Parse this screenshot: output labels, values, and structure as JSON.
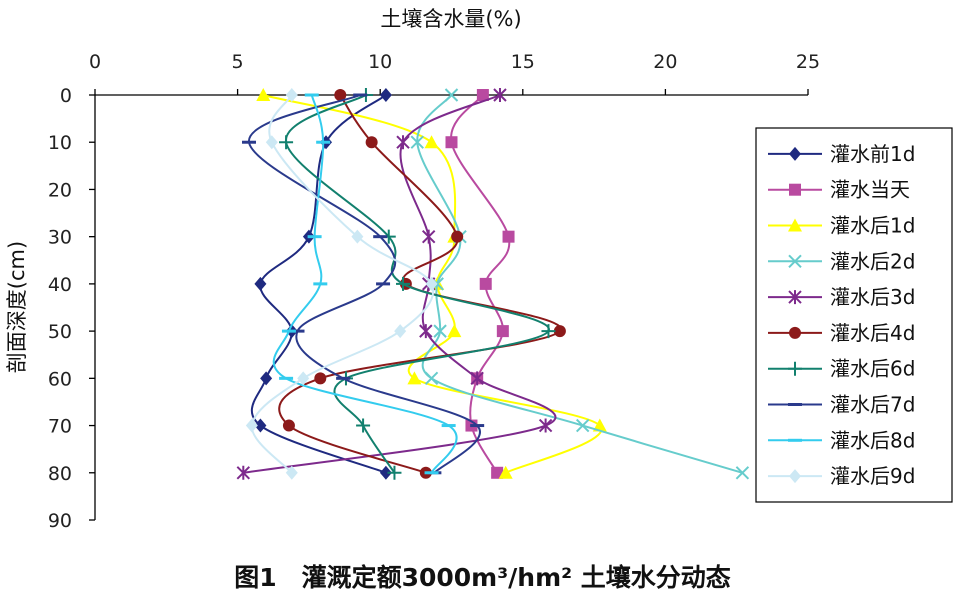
{
  "chart_data": {
    "type": "line",
    "title": "",
    "xlabel": "土壤含水量(%)",
    "ylabel": "剖面深度(cm)",
    "xlim": [
      0,
      25
    ],
    "ylim": [
      0,
      90
    ],
    "y_inverted": true,
    "x_axis_position": "top",
    "grid": false,
    "legend_position": "right",
    "x_ticks": [
      "0",
      "5",
      "10",
      "15",
      "20",
      "25"
    ],
    "y_ticks": [
      "0",
      "10",
      "20",
      "30",
      "40",
      "50",
      "60",
      "70",
      "80",
      "90"
    ],
    "depths": [
      0,
      10,
      30,
      40,
      50,
      60,
      70,
      80
    ],
    "series": [
      {
        "name": "灌水前1d",
        "color": "#1f2a80",
        "marker": "diamond",
        "values": [
          10.2,
          8.1,
          7.5,
          5.8,
          6.9,
          6.0,
          5.8,
          10.2
        ]
      },
      {
        "name": "灌水当天",
        "color": "#b94aa0",
        "marker": "square",
        "values": [
          13.6,
          12.5,
          14.5,
          13.7,
          14.3,
          13.4,
          13.2,
          14.1
        ]
      },
      {
        "name": "灌水后1d",
        "color": "#ffff00",
        "marker": "triangle",
        "values": [
          5.9,
          11.8,
          12.6,
          12.0,
          12.6,
          11.2,
          17.7,
          14.4
        ]
      },
      {
        "name": "灌水后2d",
        "color": "#66cccc",
        "marker": "x",
        "values": [
          12.5,
          11.3,
          12.8,
          12.0,
          12.1,
          11.8,
          17.1,
          22.7
        ]
      },
      {
        "name": "灌水后3d",
        "color": "#7d2a8c",
        "marker": "star",
        "values": [
          14.2,
          10.8,
          11.7,
          11.7,
          11.6,
          13.4,
          15.8,
          5.2
        ]
      },
      {
        "name": "灌水后4d",
        "color": "#8c1a1a",
        "marker": "circle",
        "values": [
          8.6,
          9.7,
          12.7,
          10.9,
          16.3,
          7.9,
          6.8,
          11.6
        ]
      },
      {
        "name": "灌水后6d",
        "color": "#12806e",
        "marker": "plus",
        "values": [
          9.5,
          6.7,
          10.3,
          10.8,
          15.9,
          8.8,
          9.4,
          10.5
        ]
      },
      {
        "name": "灌水后7d",
        "color": "#2a3a8c",
        "marker": "dash",
        "values": [
          9.3,
          5.4,
          10.0,
          10.1,
          7.1,
          8.7,
          13.4,
          11.9
        ]
      },
      {
        "name": "灌水后8d",
        "color": "#33ccee",
        "marker": "dash",
        "values": [
          7.6,
          8.0,
          7.7,
          7.9,
          6.8,
          6.7,
          12.4,
          11.8
        ]
      },
      {
        "name": "灌水后9d",
        "color": "#cce8f4",
        "marker": "diamond",
        "values": [
          6.9,
          6.2,
          9.2,
          11.8,
          10.7,
          7.3,
          5.5,
          6.9
        ]
      }
    ]
  },
  "caption": "图1　灌溉定额3000m³/hm² 土壤水分动态"
}
